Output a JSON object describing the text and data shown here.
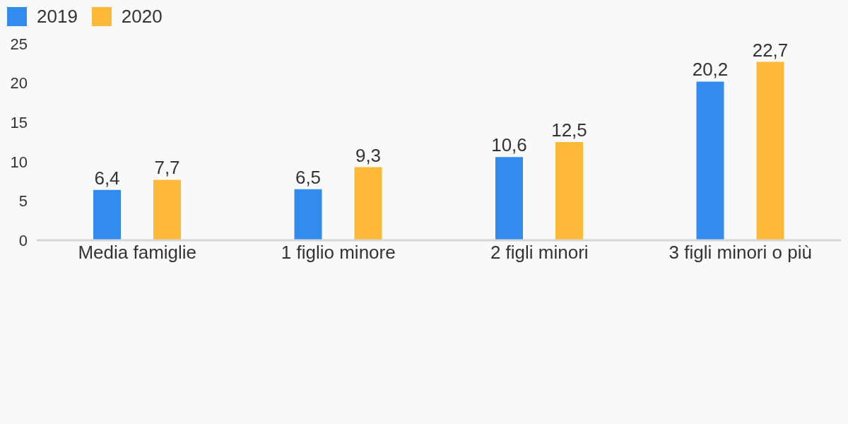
{
  "chart_data": {
    "type": "bar",
    "categories": [
      "Media famiglie",
      "1 figlio minore",
      "2 figli minori",
      "3 figli minori o più"
    ],
    "series": [
      {
        "name": "2019",
        "color": "#318ced",
        "values": [
          6.4,
          6.5,
          10.6,
          20.2
        ],
        "value_labels": [
          "6,4",
          "6,5",
          "10,6",
          "20,2"
        ]
      },
      {
        "name": "2020",
        "color": "#ffb938",
        "values": [
          7.7,
          9.3,
          12.5,
          22.7
        ],
        "value_labels": [
          "7,7",
          "9,3",
          "12,5",
          "22,7"
        ]
      }
    ],
    "ylim": [
      0,
      25
    ],
    "yticks": [
      0,
      5,
      10,
      15,
      20,
      25
    ],
    "grid": false,
    "legend": "top left"
  }
}
